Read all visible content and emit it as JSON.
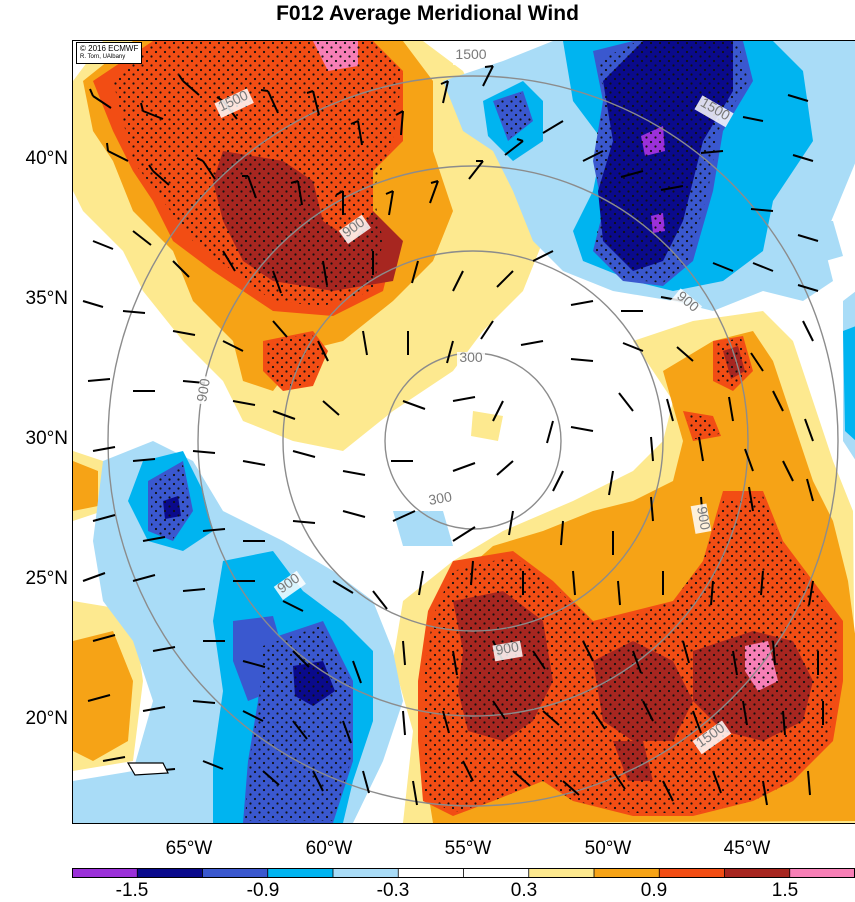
{
  "title": "F012 Average Meridional Wind",
  "credit": {
    "line1": "© 2016 ECMWF",
    "line2": "R. Torn, UAlbany"
  },
  "lat_labels": [
    "40°N",
    "35°N",
    "30°N",
    "25°N",
    "20°N"
  ],
  "lon_labels": [
    "65°W",
    "60°W",
    "55°W",
    "50°W",
    "45°W"
  ],
  "contour_labels": [
    "1500",
    "1500",
    "1500",
    "1500",
    "900",
    "900",
    "900",
    "900",
    "900",
    "900",
    "300",
    "300"
  ],
  "colorbar": {
    "tick_labels": [
      "-1.5",
      "-0.9",
      "-0.3",
      "0.3",
      "0.9",
      "1.5"
    ],
    "colors": [
      "#9b30d9",
      "#0a0a8c",
      "#3a58cf",
      "#00b4f0",
      "#a9dcf7",
      "#ffffff",
      "#ffffff",
      "#fde98f",
      "#f6a316",
      "#f24d14",
      "#a72620",
      "#f77fb6"
    ]
  }
}
